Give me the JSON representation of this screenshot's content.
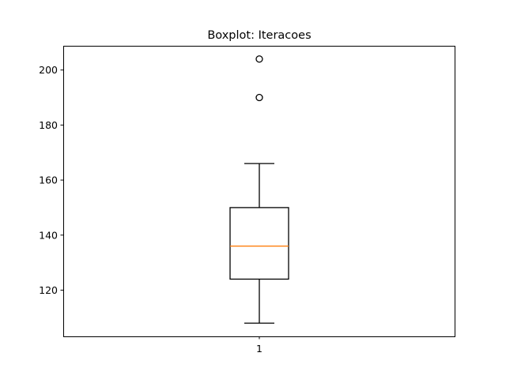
{
  "chart_data": {
    "type": "box",
    "title": "Boxplot: Iteracoes",
    "xlabel": "",
    "ylabel": "",
    "categories": [
      "1"
    ],
    "ylim": [
      103.2,
      208.8
    ],
    "yticks": [
      120,
      140,
      160,
      180,
      200
    ],
    "grid": false,
    "series": [
      {
        "whisker_low": 108,
        "q1": 124,
        "median": 136,
        "q3": 150,
        "whisker_high": 166,
        "outliers": [
          190,
          204
        ]
      }
    ],
    "colors": {
      "box": "#000000",
      "median": "#ff7f0e",
      "outlier_edge": "#000000"
    }
  }
}
